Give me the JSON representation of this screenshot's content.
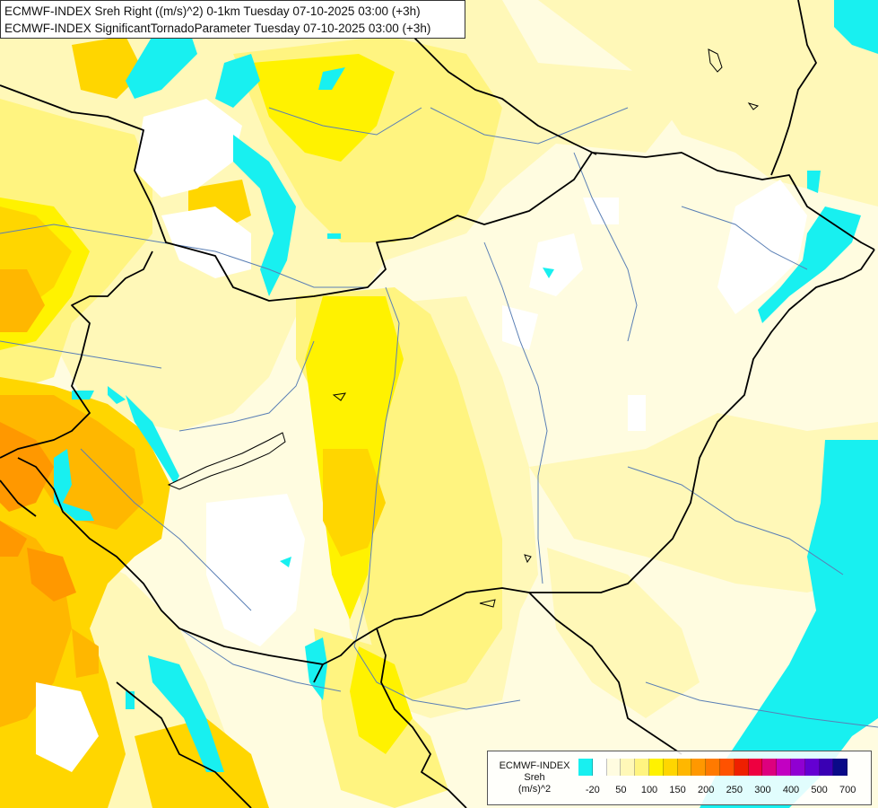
{
  "header": {
    "line1": "ECMWF-INDEX Sreh Right ((m/s)^2) 0-1km Tuesday 07-10-2025 03:00 (+3h)",
    "line2": "ECMWF-INDEX SignificantTornadoParameter Tuesday 07-10-2025 03:00 (+3h)"
  },
  "legend": {
    "title_line1": "ECMWF-INDEX",
    "title_line2": "Sreh",
    "title_line3": "(m/s)^2",
    "swatches": [
      "#18f0f0",
      "#ffffff",
      "#fffce0",
      "#fff8b8",
      "#fff480",
      "#fff200",
      "#ffd600",
      "#ffb700",
      "#ff9800",
      "#ff7a00",
      "#ff5200",
      "#ee2000",
      "#ee0040",
      "#dd007e",
      "#c200c2",
      "#9000d2",
      "#6400d2",
      "#3a00b4",
      "#0a0a88"
    ],
    "ticks": [
      {
        "label": "-20",
        "at": 1
      },
      {
        "label": "50",
        "at": 3
      },
      {
        "label": "100",
        "at": 5
      },
      {
        "label": "150",
        "at": 7
      },
      {
        "label": "200",
        "at": 9
      },
      {
        "label": "250",
        "at": 11
      },
      {
        "label": "300",
        "at": 13
      },
      {
        "label": "400",
        "at": 15
      },
      {
        "label": "500",
        "at": 17
      },
      {
        "label": "700",
        "at": 19
      }
    ]
  },
  "colors": {
    "cyan": "#18f0f0",
    "white": "#ffffff",
    "pale_yellow": "#fffce0",
    "light_yellow": "#fff8b8",
    "yellow": "#fff480",
    "bright_yellow": "#fff200",
    "gold": "#ffd600",
    "orange": "#ffb700",
    "dark_orange": "#ff9800",
    "border": "#000000",
    "river": "#5a7fb5"
  },
  "map_features": [
    "country-borders",
    "rivers",
    "lake-balaton",
    "sreh-field"
  ]
}
